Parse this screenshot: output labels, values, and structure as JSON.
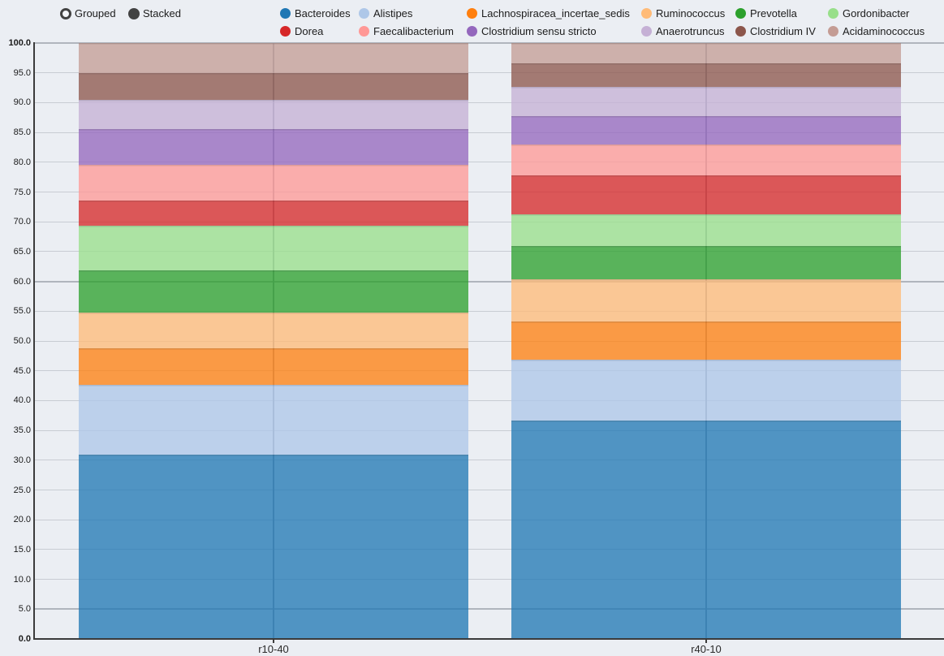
{
  "controls": {
    "options": [
      {
        "label": "Grouped",
        "selected": false
      },
      {
        "label": "Stacked",
        "selected": true
      }
    ]
  },
  "chart_data": {
    "type": "bar",
    "stacked": true,
    "title": "",
    "categories": [
      "r10-40",
      "r40-10"
    ],
    "series": [
      {
        "name": "Bacteroides",
        "color": "#1f77b4",
        "values": [
          30.9,
          36.7
        ]
      },
      {
        "name": "Alistipes",
        "color": "#aec7e8",
        "values": [
          11.8,
          10.1
        ]
      },
      {
        "name": "Lachnospiracea_incertae_sedis",
        "color": "#ff7f0e",
        "values": [
          6.1,
          6.5
        ]
      },
      {
        "name": "Ruminococcus",
        "color": "#ffbb78",
        "values": [
          6.0,
          7.1
        ]
      },
      {
        "name": "Prevotella",
        "color": "#2ca02c",
        "values": [
          7.1,
          5.6
        ]
      },
      {
        "name": "Gordonibacter",
        "color": "#98df8a",
        "values": [
          7.5,
          5.3
        ]
      },
      {
        "name": "Dorea",
        "color": "#d62728",
        "values": [
          4.1,
          6.5
        ]
      },
      {
        "name": "Faecalibacterium",
        "color": "#ff9896",
        "values": [
          6.1,
          5.1
        ]
      },
      {
        "name": "Clostridium sensu stricto",
        "color": "#9467bd",
        "values": [
          6.0,
          4.8
        ]
      },
      {
        "name": "Anaerotruncus",
        "color": "#c5b0d5",
        "values": [
          4.8,
          4.9
        ]
      },
      {
        "name": "Clostridium IV",
        "color": "#8c564b",
        "values": [
          4.5,
          4.0
        ]
      },
      {
        "name": "Acidaminococcus",
        "color": "#c49c94",
        "values": [
          5.1,
          3.4
        ]
      }
    ],
    "ylim": [
      0,
      100
    ],
    "ytick_step": 5,
    "ytick_decimals": 1,
    "bold_ytick_values": [
      100,
      0
    ],
    "dark_gridline_values": [
      100,
      60,
      5
    ],
    "grid": true,
    "legend_position": "top",
    "legend_rows": [
      [
        "Bacteroides",
        "Alistipes",
        "Lachnospiracea_incertae_sedis",
        "Ruminococcus",
        "Prevotella",
        "Gordonibacter"
      ],
      [
        "Dorea",
        "Faecalibacterium",
        "Clostridium sensu stricto",
        "Anaerotruncus",
        "Clostridium IV",
        "Acidaminococcus"
      ]
    ],
    "colors": {
      "background": "#ebeef3",
      "gridline": "#c8ccd3",
      "gridline_dark": "#b0b5bd",
      "axis": "#3b3b3b",
      "text": "#1c1c1c"
    },
    "bar_fill_opacity": 0.76
  }
}
